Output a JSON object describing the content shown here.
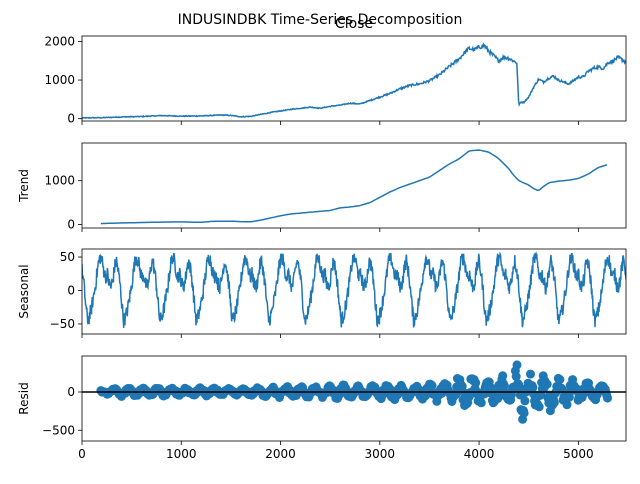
{
  "chart_data": {
    "type": "line",
    "title": "INDUSINDBK Time-Series Decomposition",
    "line_color": "#1f77b4",
    "xlim": [
      0,
      5480
    ],
    "xticks": [
      0,
      1000,
      2000,
      3000,
      4000,
      5000
    ],
    "xtick_labels": [
      "0",
      "1000",
      "2000",
      "3000",
      "4000",
      "5000"
    ],
    "panels": [
      {
        "id": "close",
        "title": "Close",
        "ylabel": "",
        "type": "line",
        "ylim": [
          -60,
          2140
        ],
        "yticks": [
          0,
          1000,
          2000
        ],
        "ytick_labels": [
          "0",
          "1000",
          "2000"
        ],
        "x": [
          0,
          200,
          400,
          600,
          800,
          1000,
          1200,
          1400,
          1500,
          1600,
          1700,
          1800,
          1900,
          2000,
          2100,
          2200,
          2300,
          2400,
          2500,
          2600,
          2700,
          2800,
          2900,
          3000,
          3100,
          3200,
          3300,
          3400,
          3500,
          3600,
          3700,
          3800,
          3850,
          3900,
          3950,
          4000,
          4050,
          4100,
          4150,
          4200,
          4250,
          4300,
          4350,
          4380,
          4400,
          4420,
          4450,
          4500,
          4550,
          4600,
          4650,
          4700,
          4750,
          4800,
          4850,
          4900,
          4950,
          5000,
          5050,
          5100,
          5150,
          5200,
          5250,
          5300,
          5350,
          5400,
          5450,
          5480
        ],
        "values": [
          20,
          25,
          45,
          55,
          80,
          65,
          70,
          95,
          85,
          50,
          60,
          110,
          160,
          200,
          240,
          270,
          300,
          270,
          320,
          350,
          400,
          380,
          470,
          560,
          650,
          770,
          860,
          900,
          980,
          1130,
          1350,
          1550,
          1700,
          1820,
          1780,
          1850,
          1900,
          1740,
          1620,
          1500,
          1600,
          1560,
          1490,
          1450,
          350,
          430,
          420,
          560,
          820,
          1020,
          950,
          1050,
          1100,
          1000,
          950,
          900,
          980,
          1080,
          1080,
          1230,
          1300,
          1340,
          1300,
          1450,
          1500,
          1580,
          1520,
          1450
        ]
      },
      {
        "id": "trend",
        "title": "",
        "ylabel": "Trend",
        "type": "line",
        "ylim": [
          -80,
          1860
        ],
        "yticks": [
          0,
          1000
        ],
        "ytick_labels": [
          "0",
          "1000"
        ],
        "x": [
          190,
          300,
          500,
          700,
          800,
          1000,
          1200,
          1300,
          1400,
          1500,
          1600,
          1700,
          1800,
          1900,
          2000,
          2100,
          2200,
          2300,
          2400,
          2500,
          2600,
          2700,
          2800,
          2900,
          3000,
          3100,
          3200,
          3300,
          3400,
          3500,
          3600,
          3700,
          3800,
          3900,
          4000,
          4100,
          4200,
          4300,
          4350,
          4400,
          4450,
          4500,
          4550,
          4600,
          4650,
          4700,
          4800,
          4900,
          5000,
          5100,
          5200,
          5300
        ],
        "values": [
          20,
          30,
          40,
          50,
          55,
          60,
          50,
          70,
          75,
          75,
          65,
          60,
          100,
          150,
          200,
          240,
          260,
          280,
          300,
          320,
          380,
          400,
          430,
          500,
          620,
          740,
          840,
          920,
          1000,
          1080,
          1230,
          1380,
          1500,
          1680,
          1700,
          1650,
          1500,
          1270,
          1120,
          1000,
          950,
          900,
          820,
          770,
          870,
          950,
          990,
          1010,
          1050,
          1150,
          1300,
          1370
        ]
      },
      {
        "id": "seasonal",
        "title": "",
        "ylabel": "Seasonal",
        "type": "line",
        "ylim": [
          -65,
          62
        ],
        "yticks": [
          -50,
          0,
          50
        ],
        "ytick_labels": [
          "−50",
          "0",
          "50"
        ],
        "period": 365,
        "pattern_phase": [
          0,
          0.05,
          0.1,
          0.15,
          0.2,
          0.25,
          0.3,
          0.35,
          0.4,
          0.45,
          0.5,
          0.55,
          0.6,
          0.65,
          0.7,
          0.75,
          0.8,
          0.85,
          0.9,
          0.95,
          1
        ],
        "pattern_values": [
          30,
          10,
          -20,
          -45,
          -40,
          -30,
          -15,
          0,
          20,
          40,
          50,
          45,
          30,
          20,
          25,
          10,
          5,
          15,
          35,
          45,
          30
        ],
        "amplitude_range": [
          -60,
          55
        ]
      },
      {
        "id": "resid",
        "title": "",
        "ylabel": "Resid",
        "type": "scatter",
        "ylim": [
          -640,
          470
        ],
        "yticks": [
          -500,
          0
        ],
        "ytick_labels": [
          "−500",
          "0"
        ],
        "zero_line": true,
        "x": [
          190,
          400,
          600,
          800,
          1000,
          1200,
          1400,
          1600,
          1800,
          2000,
          2200,
          2400,
          2600,
          2800,
          3000,
          3200,
          3400,
          3600,
          3700,
          3800,
          3900,
          4000,
          4100,
          4150,
          4200,
          4250,
          4300,
          4350,
          4380,
          4400,
          4420,
          4450,
          4500,
          4600,
          4700,
          4800,
          4900,
          5000,
          5100,
          5200,
          5300
        ],
        "envelope": [
          20,
          60,
          50,
          60,
          50,
          60,
          50,
          40,
          60,
          80,
          80,
          70,
          100,
          80,
          100,
          110,
          90,
          130,
          170,
          200,
          220,
          200,
          160,
          250,
          210,
          240,
          220,
          280,
          420,
          350,
          560,
          350,
          240,
          230,
          290,
          230,
          170,
          170,
          130,
          120,
          100
        ]
      }
    ]
  }
}
